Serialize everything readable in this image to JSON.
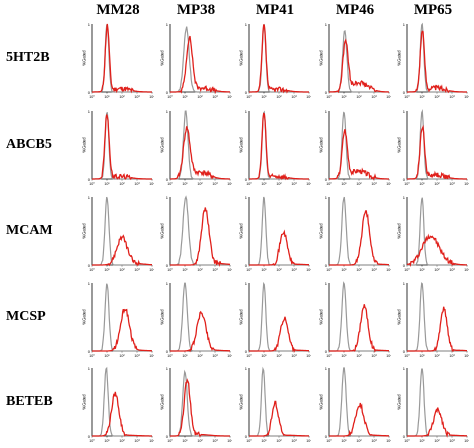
{
  "chart_data": {
    "type": "histogram-grid",
    "columns": [
      "MM28",
      "MP38",
      "MP41",
      "MP46",
      "MP65"
    ],
    "rows": [
      "5HT2B",
      "ABCB5",
      "MCAM",
      "MCSP",
      "BETEB"
    ],
    "y_axis_label": "%Gated",
    "y_ticks": [
      "0",
      "1"
    ],
    "x_ticks": [
      "10⁰",
      "10¹",
      "10²",
      "10³",
      "10⁴"
    ],
    "x_range_log10": [
      0,
      4
    ],
    "y_range": [
      0,
      1
    ],
    "series_style": {
      "control": {
        "color": "#999999"
      },
      "stained": {
        "color": "#e0201b"
      }
    },
    "panels": [
      [
        {
          "control": {
            "peak": 1.0,
            "sd": 0.12,
            "h": 1.0
          },
          "stained": {
            "peak": 1.02,
            "sd": 0.13,
            "h": 0.97,
            "tail": 0.05
          }
        },
        {
          "control": {
            "peak": 1.1,
            "sd": 0.18,
            "h": 0.95
          },
          "stained": {
            "peak": 1.3,
            "sd": 0.2,
            "h": 0.78,
            "tail": 0.06
          }
        },
        {
          "control": {
            "peak": 1.0,
            "sd": 0.12,
            "h": 1.0
          },
          "stained": {
            "peak": 1.0,
            "sd": 0.13,
            "h": 0.97,
            "tail": 0.04
          }
        },
        {
          "control": {
            "peak": 1.05,
            "sd": 0.14,
            "h": 0.92
          },
          "stained": {
            "peak": 1.1,
            "sd": 0.17,
            "h": 0.72,
            "tail": 0.14
          }
        },
        {
          "control": {
            "peak": 1.0,
            "sd": 0.12,
            "h": 1.0
          },
          "stained": {
            "peak": 1.02,
            "sd": 0.14,
            "h": 0.88,
            "tail": 0.06
          }
        }
      ],
      [
        {
          "control": {
            "peak": 1.0,
            "sd": 0.12,
            "h": 1.0
          },
          "stained": {
            "peak": 1.0,
            "sd": 0.14,
            "h": 0.95,
            "tail": 0.04
          }
        },
        {
          "control": {
            "peak": 1.05,
            "sd": 0.15,
            "h": 1.0
          },
          "stained": {
            "peak": 1.12,
            "sd": 0.22,
            "h": 0.72,
            "tail": 0.1
          }
        },
        {
          "control": {
            "peak": 1.0,
            "sd": 0.12,
            "h": 1.0
          },
          "stained": {
            "peak": 1.0,
            "sd": 0.13,
            "h": 0.97,
            "tail": 0.04
          }
        },
        {
          "control": {
            "peak": 1.0,
            "sd": 0.13,
            "h": 1.0
          },
          "stained": {
            "peak": 1.05,
            "sd": 0.17,
            "h": 0.68,
            "tail": 0.12
          }
        },
        {
          "control": {
            "peak": 1.0,
            "sd": 0.12,
            "h": 1.0
          },
          "stained": {
            "peak": 1.02,
            "sd": 0.15,
            "h": 0.75,
            "tail": 0.06
          }
        }
      ],
      [
        {
          "control": {
            "peak": 1.0,
            "sd": 0.13,
            "h": 1.0
          },
          "stained": {
            "peak": 2.0,
            "sd": 0.35,
            "h": 0.4,
            "tail": 0.02
          }
        },
        {
          "control": {
            "peak": 1.05,
            "sd": 0.18,
            "h": 1.0
          },
          "stained": {
            "peak": 2.35,
            "sd": 0.25,
            "h": 0.82,
            "tail": 0.02
          }
        },
        {
          "control": {
            "peak": 1.0,
            "sd": 0.12,
            "h": 1.0
          },
          "stained": {
            "peak": 2.3,
            "sd": 0.25,
            "h": 0.48,
            "tail": 0.01
          }
        },
        {
          "control": {
            "peak": 1.0,
            "sd": 0.14,
            "h": 1.0
          },
          "stained": {
            "peak": 2.45,
            "sd": 0.26,
            "h": 0.78,
            "tail": 0.01
          }
        },
        {
          "control": {
            "peak": 1.0,
            "sd": 0.12,
            "h": 1.0
          },
          "stained": {
            "peak": 1.55,
            "sd": 0.55,
            "h": 0.42,
            "tail": 0.03
          }
        }
      ],
      [
        {
          "control": {
            "peak": 1.0,
            "sd": 0.13,
            "h": 1.0
          },
          "stained": {
            "peak": 2.2,
            "sd": 0.3,
            "h": 0.62,
            "tail": 0.01
          }
        },
        {
          "control": {
            "peak": 1.0,
            "sd": 0.15,
            "h": 1.0
          },
          "stained": {
            "peak": 2.1,
            "sd": 0.3,
            "h": 0.56,
            "tail": 0.01
          }
        },
        {
          "control": {
            "peak": 1.0,
            "sd": 0.12,
            "h": 1.0
          },
          "stained": {
            "peak": 2.35,
            "sd": 0.25,
            "h": 0.48,
            "tail": 0.01
          }
        },
        {
          "control": {
            "peak": 1.0,
            "sd": 0.14,
            "h": 1.0
          },
          "stained": {
            "peak": 2.35,
            "sd": 0.25,
            "h": 0.66,
            "tail": 0.01
          }
        },
        {
          "control": {
            "peak": 1.0,
            "sd": 0.13,
            "h": 1.0
          },
          "stained": {
            "peak": 2.45,
            "sd": 0.23,
            "h": 0.62,
            "tail": 0.01
          }
        }
      ],
      [
        {
          "control": {
            "peak": 0.95,
            "sd": 0.13,
            "h": 1.0
          },
          "stained": {
            "peak": 1.55,
            "sd": 0.25,
            "h": 0.62,
            "tail": 0.01
          }
        },
        {
          "control": {
            "peak": 1.0,
            "sd": 0.15,
            "h": 0.95
          },
          "stained": {
            "peak": 1.15,
            "sd": 0.2,
            "h": 0.82,
            "tail": 0.02
          }
        },
        {
          "control": {
            "peak": 0.95,
            "sd": 0.12,
            "h": 1.0
          },
          "stained": {
            "peak": 1.75,
            "sd": 0.22,
            "h": 0.48,
            "tail": 0.01
          }
        },
        {
          "control": {
            "peak": 1.0,
            "sd": 0.14,
            "h": 1.0
          },
          "stained": {
            "peak": 2.05,
            "sd": 0.28,
            "h": 0.46,
            "tail": 0.01
          }
        },
        {
          "control": {
            "peak": 1.0,
            "sd": 0.13,
            "h": 1.0
          },
          "stained": {
            "peak": 2.05,
            "sd": 0.28,
            "h": 0.38,
            "tail": 0.01
          }
        }
      ]
    ]
  }
}
